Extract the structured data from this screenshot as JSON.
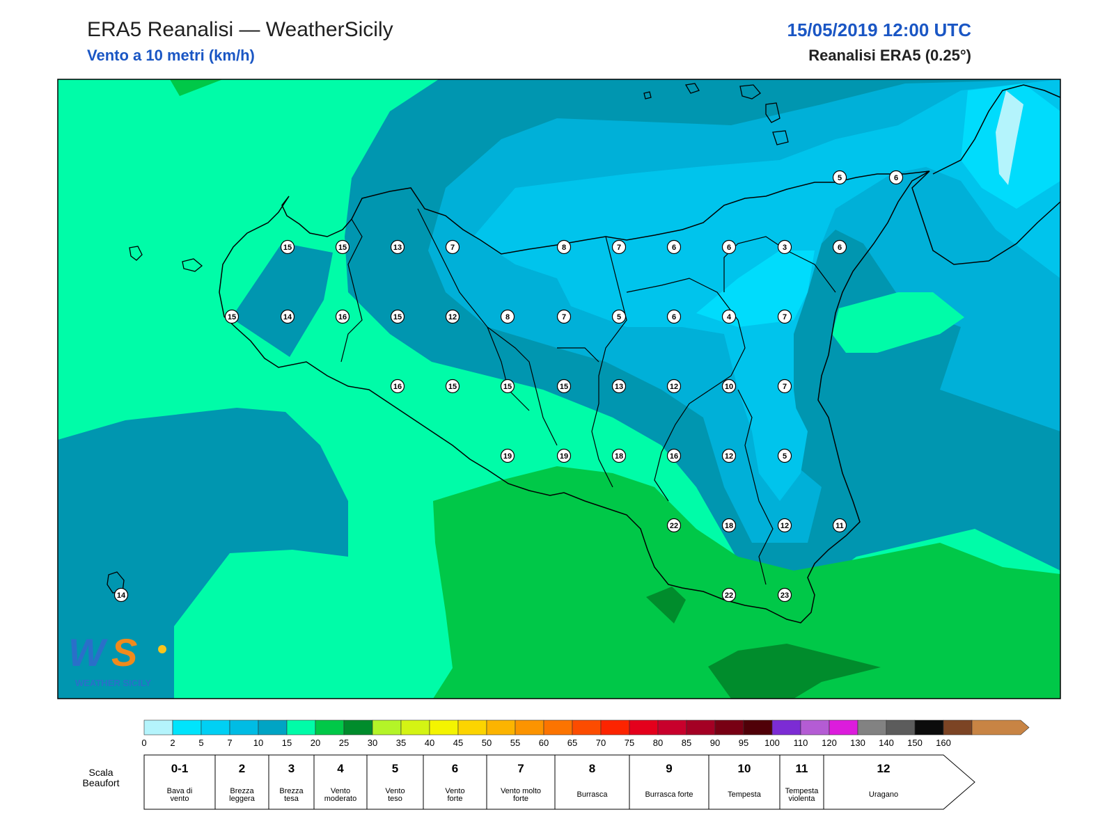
{
  "header": {
    "title": "ERA5 Reanalisi — WeatherSicily",
    "subtitle": "Vento a 10 metri (km/h)",
    "datetime": "15/05/2019 12:00 UTC",
    "source": "Reanalisi ERA5 (0.25°)"
  },
  "logo": {
    "text": "WEATHER SICILY"
  },
  "map": {
    "colors": {
      "light_cyan": "#b4f4fc",
      "cyan": "#00d8f8",
      "sky": "#00c4ec",
      "blue_teal": "#00b0d8",
      "teal": "#0096b0",
      "aqua_green": "#00fca8",
      "green": "#00c848",
      "dark_green": "#008c2c"
    },
    "station_values": [
      {
        "v": "15"
      },
      {
        "v": "15"
      },
      {
        "v": "13"
      },
      {
        "v": "7"
      },
      {
        "v": "8"
      },
      {
        "v": "7"
      },
      {
        "v": "6"
      },
      {
        "v": "6"
      },
      {
        "v": "3"
      },
      {
        "v": "6"
      },
      {
        "v": "15"
      },
      {
        "v": "14"
      },
      {
        "v": "16"
      },
      {
        "v": "15"
      },
      {
        "v": "12"
      },
      {
        "v": "8"
      },
      {
        "v": "7"
      },
      {
        "v": "5"
      },
      {
        "v": "6"
      },
      {
        "v": "4"
      },
      {
        "v": "7"
      },
      {
        "v": "16"
      },
      {
        "v": "15"
      },
      {
        "v": "15"
      },
      {
        "v": "15"
      },
      {
        "v": "13"
      },
      {
        "v": "12"
      },
      {
        "v": "10"
      },
      {
        "v": "7"
      },
      {
        "v": "19"
      },
      {
        "v": "19"
      },
      {
        "v": "18"
      },
      {
        "v": "16"
      },
      {
        "v": "12"
      },
      {
        "v": "5"
      },
      {
        "v": "22"
      },
      {
        "v": "18"
      },
      {
        "v": "12"
      },
      {
        "v": "11"
      },
      {
        "v": "22"
      },
      {
        "v": "23"
      },
      {
        "v": "14"
      },
      {
        "v": "5"
      },
      {
        "v": "6"
      }
    ]
  },
  "colorbar": {
    "ticks": [
      "0",
      "2",
      "5",
      "7",
      "10",
      "15",
      "20",
      "25",
      "30",
      "35",
      "40",
      "45",
      "50",
      "55",
      "60",
      "65",
      "70",
      "75",
      "80",
      "85",
      "90",
      "95",
      "100",
      "110",
      "120",
      "130",
      "140",
      "150",
      "160"
    ],
    "colors": [
      "#b4f4fc",
      "#00e4fc",
      "#00d0f4",
      "#00bce4",
      "#00a4c4",
      "#00fca8",
      "#00c848",
      "#008c2c",
      "#b4f428",
      "#d4f414",
      "#f4f400",
      "#fcd400",
      "#fcb400",
      "#fc9400",
      "#fc7400",
      "#fc4c00",
      "#fc2400",
      "#e4001c",
      "#c8002c",
      "#a40024",
      "#780014",
      "#500008",
      "#7c2cd4",
      "#b45cd4",
      "#dc1cdc",
      "#828282",
      "#5c5c5c",
      "#0c0c0c",
      "#7c4424",
      "#c88444"
    ]
  },
  "beaufort": {
    "label": "Scala Beaufort",
    "cells": [
      {
        "num": "0-1",
        "desc": "Bava di vento"
      },
      {
        "num": "2",
        "desc": "Brezza leggera"
      },
      {
        "num": "3",
        "desc": "Brezza tesa"
      },
      {
        "num": "4",
        "desc": "Vento moderato"
      },
      {
        "num": "5",
        "desc": "Vento teso"
      },
      {
        "num": "6",
        "desc": "Vento forte"
      },
      {
        "num": "7",
        "desc": "Vento molto forte"
      },
      {
        "num": "8",
        "desc": "Burrasca"
      },
      {
        "num": "9",
        "desc": "Burrasca forte"
      },
      {
        "num": "10",
        "desc": "Tempesta"
      },
      {
        "num": "11",
        "desc": "Tempesta violenta"
      },
      {
        "num": "12",
        "desc": "Uragano"
      }
    ]
  }
}
